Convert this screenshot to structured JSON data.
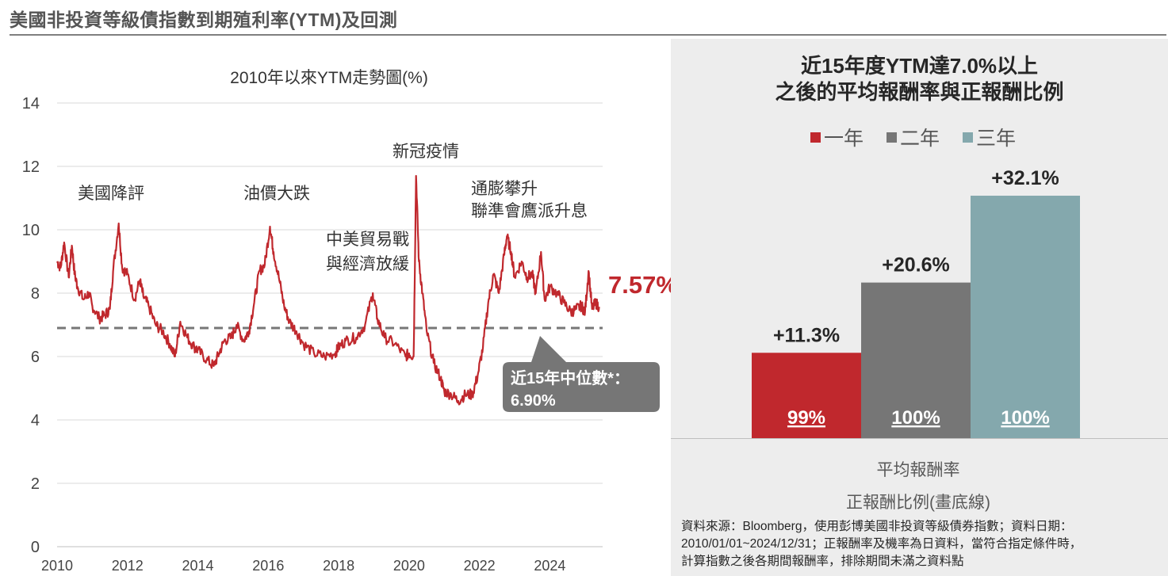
{
  "page_title": "美國非投資等級債指數到期殖利率(YTM)及回測",
  "left": {
    "subtitle": "2010年以來YTM走勢圖(%)",
    "current_value_label": "7.57%",
    "annotations": {
      "us_downgrade": "美國降評",
      "oil_crash": "油價大跌",
      "trade_war_line1": "中美貿易戰",
      "trade_war_line2": "與經濟放緩",
      "covid": "新冠疫情",
      "inflation_line1": "通膨攀升",
      "inflation_line2": "聯準會鷹派升息"
    },
    "median_line1": "近15年中位數*：",
    "median_line2": "6.90%"
  },
  "right": {
    "title_line1": "近15年度YTM達7.0%以上",
    "title_line2": "之後的平均報酬率與正報酬比例",
    "avg_return_label": "平均報酬率",
    "positive_ratio_label": "正報酬比例(畫底線)",
    "source_line1": "資料來源：Bloomberg，使用彭博美國非投資等級債券指數；資料日期：",
    "source_line2": "2010/01/01~2024/12/31；正報酬率及機率為日資料，當符合指定條件時，",
    "source_line3": "計算指數之後各期間報酬率，排除期間未滿之資料點"
  },
  "chart_data": [
    {
      "type": "line",
      "title": "2010年以來YTM走勢圖(%)",
      "xlabel": "",
      "ylabel": "",
      "xlim": [
        2010,
        2025.5
      ],
      "ylim": [
        0,
        14
      ],
      "x_ticks": [
        "2010",
        "2012",
        "2014",
        "2016",
        "2018",
        "2020",
        "2022",
        "2024"
      ],
      "y_ticks": [
        "0",
        "2",
        "4",
        "6",
        "8",
        "10",
        "12",
        "14"
      ],
      "grid": "horizontal",
      "color": "#c0282d",
      "reference_line": {
        "value": 6.9,
        "style": "dashed",
        "color": "#777777"
      },
      "series": [
        {
          "x": [
            2010.0,
            2010.1,
            2010.2,
            2010.33,
            2010.42,
            2010.5,
            2010.58,
            2010.75,
            2010.9,
            2011.0,
            2011.2,
            2011.35,
            2011.5,
            2011.6,
            2011.75,
            2011.85,
            2012.0,
            2012.2,
            2012.35,
            2012.45,
            2012.6,
            2012.8,
            2013.0,
            2013.2,
            2013.35,
            2013.5,
            2013.7,
            2013.9,
            2014.0,
            2014.25,
            2014.45,
            2014.6,
            2014.75,
            2014.95,
            2015.1,
            2015.3,
            2015.45,
            2015.6,
            2015.75,
            2015.9,
            2016.05,
            2016.15,
            2016.3,
            2016.45,
            2016.6,
            2016.8,
            2017.0,
            2017.3,
            2017.6,
            2017.9,
            2018.0,
            2018.2,
            2018.5,
            2018.75,
            2018.97,
            2019.1,
            2019.3,
            2019.6,
            2019.9,
            2020.0,
            2020.13,
            2020.2,
            2020.28,
            2020.38,
            2020.5,
            2020.7,
            2020.9,
            2021.0,
            2021.2,
            2021.4,
            2021.6,
            2021.8,
            2021.95,
            2022.1,
            2022.25,
            2022.4,
            2022.55,
            2022.7,
            2022.78,
            2022.9,
            2023.0,
            2023.2,
            2023.35,
            2023.5,
            2023.6,
            2023.75,
            2023.85,
            2024.0,
            2024.2,
            2024.4,
            2024.6,
            2024.75,
            2024.9,
            2025.0,
            2025.1,
            2025.2,
            2025.3,
            2025.4
          ],
          "y": [
            9.0,
            8.8,
            9.6,
            8.5,
            9.5,
            8.6,
            8.2,
            7.8,
            8.0,
            7.6,
            7.2,
            7.3,
            7.5,
            8.8,
            10.2,
            8.8,
            8.6,
            7.8,
            8.4,
            7.9,
            7.6,
            7.0,
            6.8,
            6.4,
            6.0,
            7.1,
            6.6,
            6.3,
            6.2,
            5.9,
            5.7,
            6.1,
            6.5,
            6.6,
            7.0,
            6.5,
            6.8,
            7.7,
            8.7,
            8.9,
            10.1,
            9.3,
            8.5,
            7.6,
            7.1,
            6.8,
            6.4,
            6.1,
            6.0,
            6.1,
            6.3,
            6.5,
            6.6,
            7.0,
            8.0,
            7.2,
            6.6,
            6.4,
            6.0,
            6.1,
            6.0,
            11.7,
            9.0,
            8.0,
            6.8,
            5.8,
            5.3,
            4.9,
            4.8,
            4.6,
            4.8,
            4.8,
            5.4,
            6.3,
            7.7,
            8.6,
            8.0,
            9.2,
            9.8,
            9.3,
            8.5,
            9.0,
            8.5,
            8.6,
            8.0,
            9.3,
            7.8,
            8.2,
            8.0,
            7.7,
            7.4,
            7.5,
            7.6,
            7.4,
            8.7,
            7.5,
            7.7,
            7.57
          ]
        }
      ]
    },
    {
      "type": "bar",
      "title": "近15年度YTM達7.0%以上之後的平均報酬率與正報酬比例",
      "categories": [
        "一年",
        "二年",
        "三年"
      ],
      "series": [
        {
          "name": "平均報酬率",
          "values": [
            11.3,
            20.6,
            32.1
          ],
          "labels": [
            "+11.3%",
            "+20.6%",
            "+32.1%"
          ]
        },
        {
          "name": "正報酬比例",
          "values": [
            99,
            100,
            100
          ],
          "labels": [
            "99%",
            "100%",
            "100%"
          ]
        }
      ],
      "colors": [
        "#c0282d",
        "#767676",
        "#84a8ad"
      ],
      "legend": [
        "一年",
        "二年",
        "三年"
      ],
      "legend_position": "top",
      "grid": false
    }
  ]
}
